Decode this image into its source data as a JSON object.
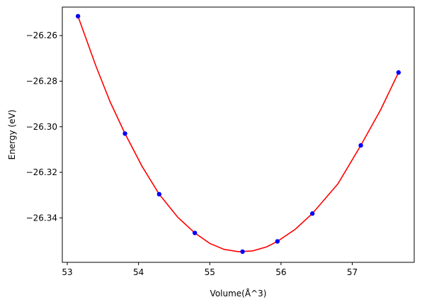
{
  "chart_data": {
    "type": "scatter",
    "title": "",
    "xlabel": "Volume(Å^3)",
    "ylabel": "Energy (eV)",
    "xlim": [
      52.93,
      57.87
    ],
    "ylim": [
      -26.3595,
      -26.2475
    ],
    "xticks": [
      53,
      54,
      55,
      56,
      57
    ],
    "xtick_labels": [
      "53",
      "54",
      "55",
      "56",
      "57"
    ],
    "yticks": [
      -26.34,
      -26.32,
      -26.3,
      -26.28,
      -26.26
    ],
    "ytick_labels": [
      "−26.34",
      "−26.32",
      "−26.30",
      "−26.28",
      "−26.26"
    ],
    "grid": false,
    "series": [
      {
        "kind": "points",
        "color": "#0000ff",
        "x": [
          53.15,
          53.81,
          54.29,
          54.79,
          55.46,
          55.95,
          56.44,
          57.12,
          57.65
        ],
        "y": [
          -26.2515,
          -26.303,
          -26.3296,
          -26.3466,
          -26.3548,
          -26.3503,
          -26.3381,
          -26.3082,
          -26.2762
        ]
      },
      {
        "kind": "fit-line",
        "color": "#ff0000",
        "x": [
          53.15,
          53.4,
          53.6,
          53.81,
          54.05,
          54.29,
          54.55,
          54.79,
          55.0,
          55.2,
          55.4,
          55.6,
          55.8,
          55.95,
          56.2,
          56.44,
          56.8,
          57.12,
          57.4,
          57.65
        ],
        "y": [
          -26.2515,
          -26.2732,
          -26.289,
          -26.303,
          -26.3174,
          -26.3296,
          -26.3397,
          -26.3466,
          -26.3512,
          -26.3538,
          -26.3548,
          -26.3545,
          -26.3527,
          -26.3503,
          -26.345,
          -26.3381,
          -26.325,
          -26.3082,
          -26.2925,
          -26.2762
        ]
      }
    ]
  }
}
